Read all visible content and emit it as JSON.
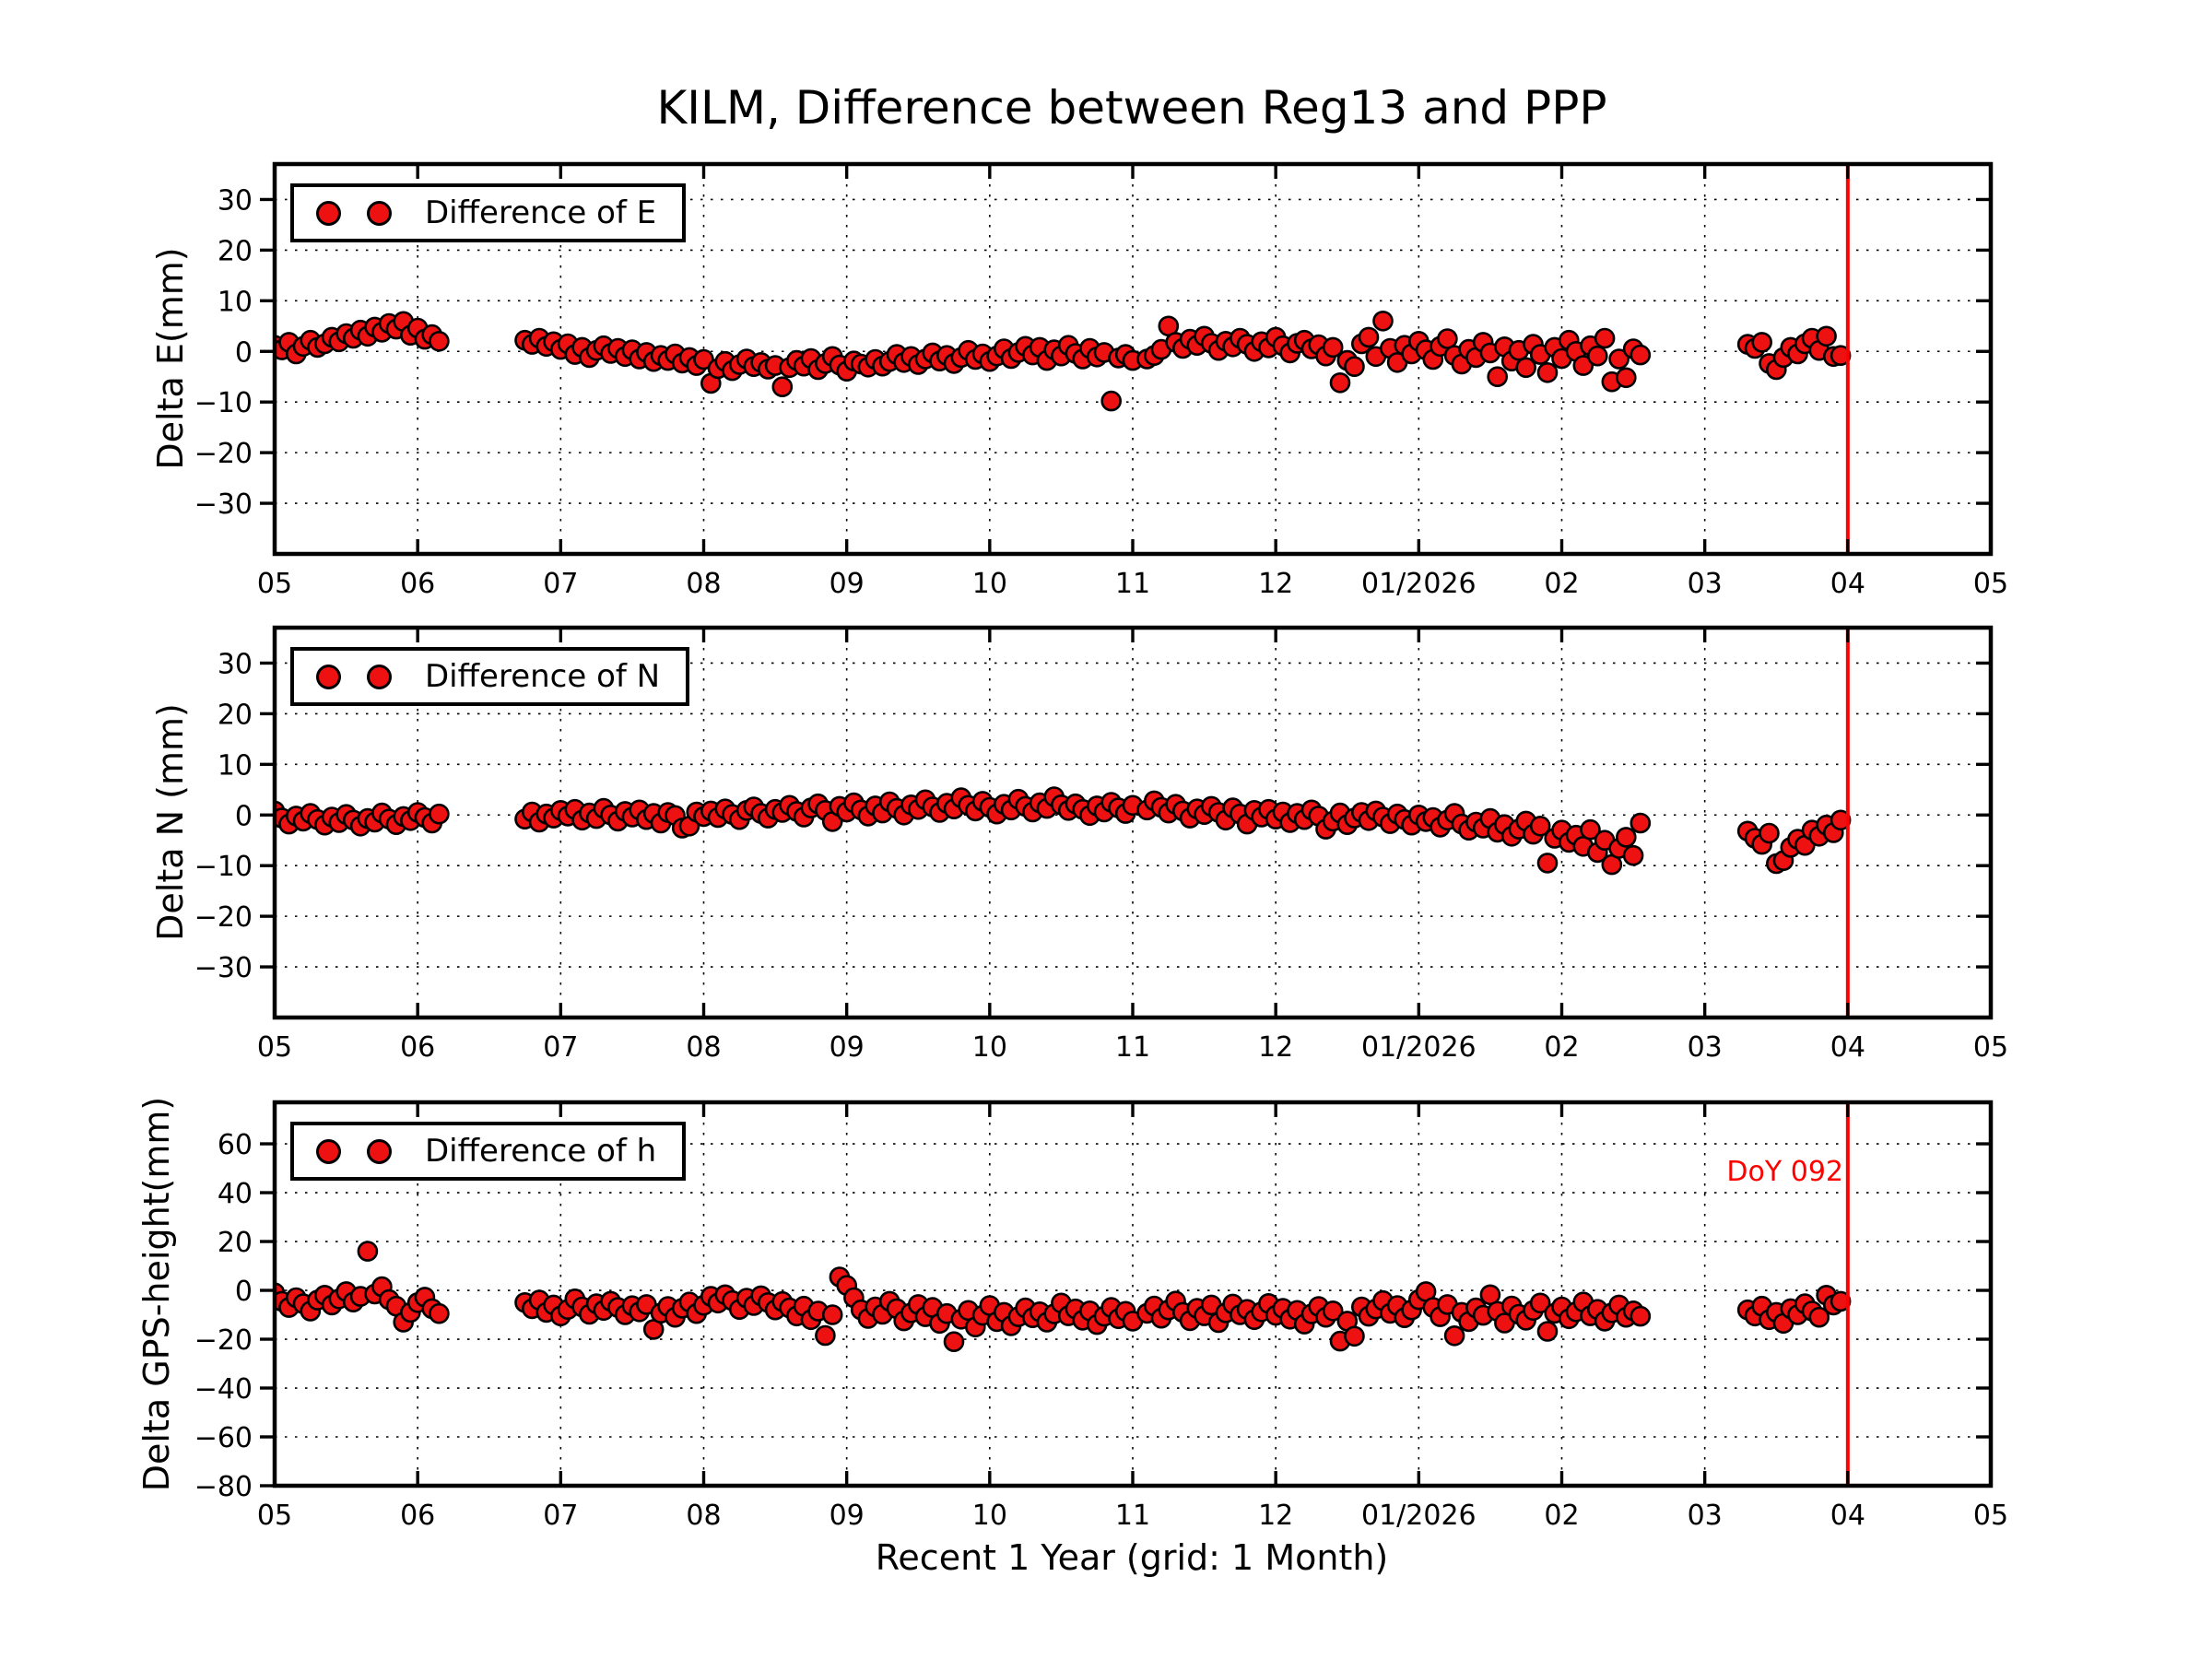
{
  "title": "KILM, Difference between Reg13 and PPP",
  "annotation": {
    "text": "DoY 092"
  },
  "colors": {
    "marker": "#ee1111",
    "marker_edge": "#000000",
    "event_line": "#ff0000",
    "annotation_text": "#ff0000",
    "grid": "#000000"
  },
  "chart_data": {
    "type": "scatter",
    "title": "KILM, Difference between Reg13 and PPP",
    "xlabel": "Recent 1 Year (grid: 1 Month)",
    "grid": "dotted, 1 month spacing",
    "legend_position": "upper left",
    "xlim": [
      5,
      17
    ],
    "x_tick_labels": [
      "05",
      "06",
      "07",
      "08",
      "09",
      "10",
      "11",
      "12",
      "01/2026",
      "02",
      "03",
      "04",
      "05"
    ],
    "event_line_month": 16,
    "x_months": [
      5.0,
      5.05,
      5.1,
      5.15,
      5.2,
      5.25,
      5.3,
      5.35,
      5.4,
      5.45,
      5.5,
      5.55,
      5.6,
      5.65,
      5.7,
      5.75,
      5.8,
      5.85,
      5.9,
      5.95,
      6.0,
      6.05,
      6.1,
      6.15,
      6.75,
      6.8,
      6.85,
      6.9,
      6.95,
      7.0,
      7.05,
      7.1,
      7.15,
      7.2,
      7.25,
      7.3,
      7.35,
      7.4,
      7.45,
      7.5,
      7.55,
      7.6,
      7.65,
      7.7,
      7.75,
      7.8,
      7.85,
      7.9,
      7.95,
      8.0,
      8.05,
      8.1,
      8.15,
      8.2,
      8.25,
      8.3,
      8.35,
      8.4,
      8.45,
      8.5,
      8.55,
      8.6,
      8.65,
      8.7,
      8.75,
      8.8,
      8.85,
      8.9,
      8.95,
      9.0,
      9.05,
      9.1,
      9.15,
      9.2,
      9.25,
      9.3,
      9.35,
      9.4,
      9.45,
      9.5,
      9.55,
      9.6,
      9.65,
      9.7,
      9.75,
      9.8,
      9.85,
      9.9,
      9.95,
      10.0,
      10.05,
      10.1,
      10.15,
      10.2,
      10.25,
      10.3,
      10.35,
      10.4,
      10.45,
      10.5,
      10.55,
      10.6,
      10.65,
      10.7,
      10.75,
      10.8,
      10.85,
      10.9,
      10.95,
      11.0,
      11.1,
      11.15,
      11.2,
      11.25,
      11.3,
      11.35,
      11.4,
      11.45,
      11.5,
      11.55,
      11.6,
      11.65,
      11.7,
      11.75,
      11.8,
      11.85,
      11.9,
      11.95,
      12.0,
      12.05,
      12.1,
      12.15,
      12.2,
      12.25,
      12.3,
      12.35,
      12.4,
      12.45,
      12.5,
      12.55,
      12.6,
      12.65,
      12.7,
      12.75,
      12.8,
      12.85,
      12.9,
      12.95,
      13.0,
      13.05,
      13.1,
      13.15,
      13.2,
      13.25,
      13.3,
      13.35,
      13.4,
      13.45,
      13.5,
      13.55,
      13.6,
      13.65,
      13.7,
      13.75,
      13.8,
      13.85,
      13.9,
      13.95,
      14.0,
      14.05,
      14.1,
      14.15,
      14.2,
      14.25,
      14.3,
      14.35,
      14.4,
      14.45,
      14.5,
      14.55,
      15.3,
      15.35,
      15.4,
      15.45,
      15.5,
      15.55,
      15.6,
      15.65,
      15.7,
      15.75,
      15.8,
      15.85,
      15.9,
      15.95
    ],
    "subplots": [
      {
        "name": "E",
        "legend_label": "Difference of E",
        "ylabel": "Delta E(mm)",
        "ylim": [
          -40,
          37
        ],
        "yticks": [
          -30,
          -20,
          -10,
          0,
          10,
          20,
          30
        ],
        "vline_month": 16,
        "y": [
          1.2,
          0.3,
          1.8,
          -0.5,
          1.0,
          2.2,
          0.8,
          1.5,
          2.8,
          1.9,
          3.5,
          2.6,
          4.2,
          3.0,
          4.8,
          3.8,
          5.5,
          4.4,
          5.9,
          3.2,
          4.6,
          2.4,
          3.3,
          2.0,
          2.2,
          1.4,
          2.6,
          1.0,
          1.9,
          0.4,
          1.5,
          -0.6,
          0.8,
          -1.2,
          0.2,
          1.1,
          -0.4,
          0.6,
          -1.0,
          0.3,
          -1.5,
          -0.2,
          -2.0,
          -0.8,
          -1.8,
          -0.5,
          -2.3,
          -1.2,
          -2.8,
          -1.6,
          -6.3,
          -3.4,
          -2.0,
          -3.8,
          -2.6,
          -1.5,
          -3.0,
          -2.2,
          -3.5,
          -2.8,
          -7.0,
          -3.2,
          -1.8,
          -2.9,
          -1.4,
          -3.6,
          -2.4,
          -1.0,
          -2.7,
          -3.9,
          -1.9,
          -2.5,
          -3.1,
          -1.6,
          -2.9,
          -2.0,
          -0.6,
          -2.2,
          -1.0,
          -2.6,
          -1.5,
          -0.3,
          -1.9,
          -0.8,
          -2.4,
          -1.2,
          0.2,
          -1.6,
          -0.5,
          -2.0,
          -0.9,
          0.5,
          -1.4,
          -0.2,
          1.0,
          -0.7,
          0.8,
          -1.8,
          0.3,
          -0.9,
          1.2,
          -0.4,
          -1.5,
          0.6,
          -1.1,
          -0.2,
          -9.8,
          -1.3,
          -0.6,
          -1.8,
          -1.5,
          -0.8,
          0.4,
          5.0,
          1.8,
          0.6,
          2.4,
          1.2,
          3.0,
          1.6,
          0.2,
          2.0,
          0.9,
          2.6,
          1.4,
          0.0,
          1.9,
          0.7,
          2.8,
          1.1,
          -0.3,
          1.6,
          2.2,
          0.5,
          1.3,
          -0.9,
          0.8,
          -6.2,
          -1.8,
          -3.0,
          1.5,
          2.8,
          -1.0,
          6.0,
          0.6,
          -2.2,
          1.2,
          -0.5,
          2.0,
          0.3,
          -1.6,
          1.0,
          2.5,
          -0.8,
          -2.5,
          0.4,
          -1.2,
          1.8,
          -0.3,
          -5.0,
          0.9,
          -1.9,
          0.2,
          -3.2,
          1.4,
          -0.6,
          -4.2,
          0.8,
          -1.4,
          2.2,
          0.0,
          -2.8,
          1.1,
          -0.9,
          2.6,
          -6.0,
          -1.5,
          -5.2,
          0.5,
          -0.7,
          1.4,
          0.6,
          1.8,
          -2.4,
          -3.6,
          -1.2,
          0.8,
          -0.5,
          1.5,
          2.6,
          0.2,
          3.0,
          -1.0,
          -0.8
        ]
      },
      {
        "name": "N",
        "legend_label": "Difference of N",
        "ylabel": "Delta N (mm)",
        "ylim": [
          -40,
          37
        ],
        "yticks": [
          -30,
          -20,
          -10,
          0,
          10,
          20,
          30
        ],
        "vline_month": 16,
        "y": [
          0.8,
          -0.6,
          -1.8,
          -0.2,
          -1.2,
          0.3,
          -0.9,
          -2.0,
          -0.4,
          -1.5,
          0.1,
          -1.0,
          -2.2,
          -0.7,
          -1.4,
          0.4,
          -0.8,
          -1.9,
          -0.3,
          -1.1,
          0.5,
          -0.5,
          -1.6,
          0.2,
          -0.8,
          0.6,
          -1.4,
          0.2,
          -0.6,
          0.9,
          -0.2,
          1.1,
          -1.0,
          0.4,
          -0.7,
          1.3,
          0.0,
          -1.2,
          0.7,
          -0.4,
          1.0,
          -0.9,
          0.3,
          -1.6,
          0.5,
          -0.1,
          -2.6,
          -2.2,
          0.6,
          -0.3,
          0.8,
          -0.5,
          1.2,
          0.1,
          -0.9,
          0.9,
          1.6,
          0.3,
          -0.6,
          1.1,
          0.5,
          1.9,
          0.7,
          -0.4,
          1.4,
          2.2,
          0.9,
          -1.3,
          1.7,
          0.6,
          2.4,
          1.0,
          -0.2,
          1.8,
          0.4,
          2.6,
          1.3,
          0.0,
          2.0,
          1.1,
          3.0,
          1.6,
          0.5,
          2.3,
          1.2,
          3.4,
          1.9,
          0.8,
          2.7,
          1.5,
          0.2,
          2.1,
          1.0,
          3.1,
          1.7,
          0.6,
          2.4,
          1.3,
          3.6,
          2.0,
          0.9,
          2.2,
          1.1,
          -0.1,
          1.8,
          0.6,
          2.5,
          1.4,
          0.3,
          1.9,
          1.0,
          2.8,
          1.5,
          0.4,
          2.1,
          0.8,
          -0.6,
          1.2,
          0.1,
          1.7,
          0.5,
          -1.0,
          1.4,
          0.2,
          -1.8,
          0.9,
          -0.4,
          1.1,
          -0.8,
          0.6,
          -1.5,
          0.3,
          -0.9,
          1.0,
          -0.2,
          -2.8,
          -1.2,
          0.4,
          -1.9,
          -0.6,
          0.5,
          -1.1,
          0.8,
          -0.4,
          -1.7,
          0.2,
          -0.9,
          -2.0,
          0.0,
          -1.3,
          -0.5,
          -2.4,
          -1.0,
          0.3,
          -1.8,
          -3.0,
          -1.4,
          -2.6,
          -0.7,
          -3.4,
          -1.9,
          -4.2,
          -2.8,
          -1.2,
          -3.8,
          -2.2,
          -9.5,
          -4.6,
          -3.0,
          -5.4,
          -4.0,
          -6.2,
          -2.9,
          -7.4,
          -5.0,
          -9.8,
          -6.6,
          -4.4,
          -8.0,
          -1.6,
          -3.2,
          -4.6,
          -5.8,
          -3.6,
          -9.6,
          -9.0,
          -6.4,
          -4.8,
          -6.0,
          -3.0,
          -4.2,
          -2.0,
          -3.5,
          -1.0
        ]
      },
      {
        "name": "h",
        "legend_label": "Difference of h",
        "ylabel": "Delta GPS-height(mm)",
        "ylim": [
          -80,
          77
        ],
        "yticks": [
          -80,
          -60,
          -40,
          -20,
          0,
          20,
          40,
          60
        ],
        "vline_month": 16,
        "y": [
          -1.0,
          -4.5,
          -7.0,
          -3.0,
          -5.5,
          -8.5,
          -4.0,
          -2.0,
          -6.0,
          -3.5,
          -0.5,
          -4.8,
          -2.5,
          16.0,
          -1.5,
          1.5,
          -3.8,
          -6.5,
          -13.0,
          -9.0,
          -5.0,
          -2.8,
          -7.5,
          -9.5,
          -5.0,
          -7.5,
          -4.0,
          -9.0,
          -6.0,
          -10.5,
          -7.8,
          -3.5,
          -6.8,
          -9.8,
          -5.5,
          -8.2,
          -4.5,
          -7.0,
          -10.0,
          -6.3,
          -8.8,
          -5.8,
          -16.0,
          -9.3,
          -6.6,
          -11.0,
          -7.3,
          -4.8,
          -9.5,
          -6.1,
          -2.5,
          -5.2,
          -1.8,
          -4.2,
          -7.8,
          -3.2,
          -6.2,
          -2.2,
          -5.0,
          -8.0,
          -4.6,
          -7.2,
          -10.5,
          -6.5,
          -12.0,
          -8.5,
          -18.5,
          -10.0,
          5.5,
          2.0,
          -3.0,
          -8.0,
          -11.5,
          -6.8,
          -9.8,
          -4.5,
          -7.5,
          -12.5,
          -9.2,
          -5.8,
          -10.8,
          -7.0,
          -13.5,
          -9.5,
          -21.0,
          -11.8,
          -8.2,
          -15.0,
          -10.2,
          -6.2,
          -12.8,
          -9.0,
          -14.5,
          -10.8,
          -7.2,
          -11.2,
          -8.8,
          -13.0,
          -9.6,
          -5.2,
          -10.4,
          -7.6,
          -12.2,
          -8.4,
          -14.0,
          -10.6,
          -7.0,
          -11.6,
          -8.6,
          -12.6,
          -9.4,
          -6.4,
          -11.4,
          -8.0,
          -4.4,
          -9.0,
          -12.4,
          -7.4,
          -10.4,
          -6.0,
          -13.2,
          -9.2,
          -5.6,
          -10.0,
          -7.8,
          -12.0,
          -8.8,
          -5.4,
          -10.2,
          -7.4,
          -11.8,
          -8.2,
          -13.8,
          -9.6,
          -6.6,
          -11.0,
          -8.4,
          -20.8,
          -12.6,
          -18.8,
          -6.8,
          -10.6,
          -7.6,
          -4.2,
          -9.4,
          -6.2,
          -11.2,
          -8.0,
          -3.8,
          -0.5,
          -7.0,
          -10.8,
          -5.8,
          -18.6,
          -9.0,
          -12.8,
          -7.2,
          -10.2,
          -1.8,
          -8.6,
          -13.4,
          -6.4,
          -9.8,
          -12.2,
          -8.2,
          -5.2,
          -16.8,
          -9.4,
          -6.8,
          -11.6,
          -8.8,
          -4.8,
          -10.4,
          -7.8,
          -12.6,
          -9.2,
          -6.0,
          -11.0,
          -8.4,
          -10.6,
          -8.0,
          -10.5,
          -6.5,
          -12.0,
          -9.0,
          -13.5,
          -7.5,
          -10.0,
          -5.5,
          -8.5,
          -11.0,
          -2.0,
          -6.0,
          -4.5
        ]
      }
    ]
  }
}
